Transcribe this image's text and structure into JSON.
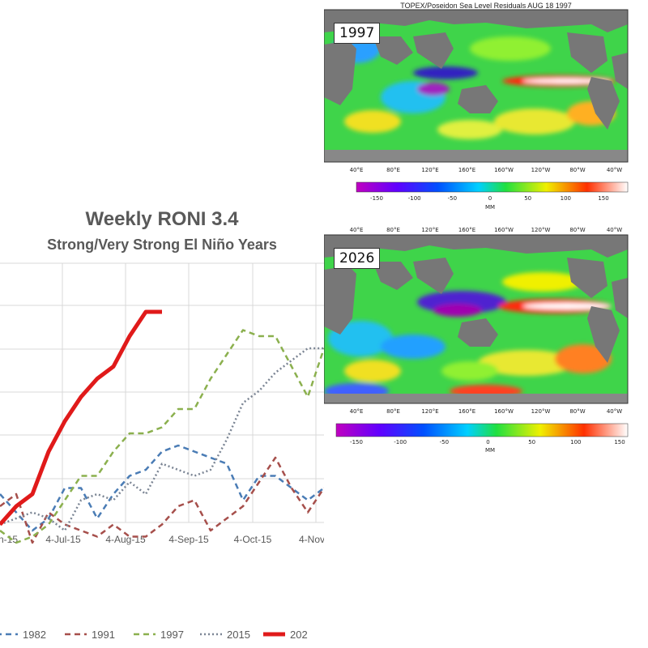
{
  "chart_data": [
    {
      "type": "line",
      "title": "Weekly RONI 3.4",
      "subtitle": "Strong/Very Strong El Niño Years",
      "x_tick_labels": [
        "n-15",
        "4-Jul-15",
        "4-Aug-15",
        "4-Sep-15",
        "4-Oct-15",
        "4-Nov"
      ],
      "grid": true,
      "legend_position": "bottom",
      "series": [
        {
          "name": "1982",
          "color": "#4a7cb5",
          "style": "dashed",
          "x": [
            0,
            4,
            8,
            12,
            16,
            20,
            24,
            28,
            32,
            36,
            40,
            44,
            48,
            52,
            56,
            60,
            64,
            68,
            72,
            76,
            80
          ],
          "y": [
            60,
            45,
            30,
            40,
            65,
            65,
            40,
            60,
            75,
            80,
            95,
            100,
            95,
            90,
            85,
            55,
            75,
            75,
            65,
            55,
            65
          ]
        },
        {
          "name": "1991",
          "color": "#a64f4b",
          "style": "dashed",
          "x": [
            0,
            4,
            8,
            12,
            16,
            20,
            24,
            28,
            32,
            36,
            40,
            44,
            48,
            52,
            56,
            60,
            64,
            68,
            72,
            76,
            80
          ],
          "y": [
            50,
            60,
            20,
            45,
            35,
            30,
            25,
            35,
            25,
            25,
            35,
            50,
            55,
            30,
            40,
            50,
            70,
            90,
            65,
            45,
            65
          ]
        },
        {
          "name": "1997",
          "color": "#8bb04e",
          "style": "dashed",
          "x": [
            0,
            4,
            8,
            12,
            16,
            20,
            24,
            28,
            32,
            36,
            40,
            44,
            48,
            52,
            56,
            60,
            64,
            68,
            72,
            76,
            80
          ],
          "y": [
            30,
            20,
            25,
            35,
            55,
            75,
            75,
            95,
            110,
            110,
            115,
            130,
            130,
            155,
            175,
            195,
            190,
            190,
            165,
            140,
            180
          ]
        },
        {
          "name": "2015",
          "color": "#7b8594",
          "style": "dotted",
          "x": [
            0,
            4,
            8,
            12,
            16,
            20,
            24,
            28,
            32,
            36,
            40,
            44,
            48,
            52,
            56,
            60,
            64,
            68,
            72,
            76,
            80
          ],
          "y": [
            35,
            40,
            45,
            40,
            30,
            55,
            60,
            55,
            70,
            60,
            85,
            80,
            75,
            80,
            105,
            135,
            145,
            160,
            170,
            180,
            180
          ]
        },
        {
          "name": "202",
          "color": "#e01a1a",
          "style": "solid",
          "x": [
            0,
            4,
            8,
            12,
            16,
            20,
            24,
            28,
            32,
            36,
            40
          ],
          "y": [
            35,
            50,
            60,
            95,
            120,
            140,
            155,
            165,
            190,
            210,
            210
          ]
        }
      ]
    }
  ],
  "maps": {
    "top": {
      "title": "TOPEX/Poseidon Sea Level Residuals AUG 18 1997",
      "year": "1997",
      "lon_labels": [
        "40°E",
        "80°E",
        "120°E",
        "160°E",
        "160°W",
        "120°W",
        "80°W",
        "40°W"
      ],
      "cbar_ticks": [
        "-150",
        "-100",
        "-50",
        "0",
        "50",
        "100",
        "150"
      ],
      "cbar_unit": "MM"
    },
    "bottom": {
      "year": "2026",
      "lon_labels_top": [
        "40°E",
        "80°E",
        "120°E",
        "160°E",
        "160°W",
        "120°W",
        "80°W",
        "40°W"
      ],
      "lon_labels": [
        "40°E",
        "80°E",
        "120°E",
        "160°E",
        "160°W",
        "120°W",
        "80°W",
        "40°W"
      ],
      "cbar_ticks": [
        "-150",
        "-100",
        "-50",
        "0",
        "50",
        "100",
        "150"
      ],
      "cbar_unit": "MM"
    }
  }
}
